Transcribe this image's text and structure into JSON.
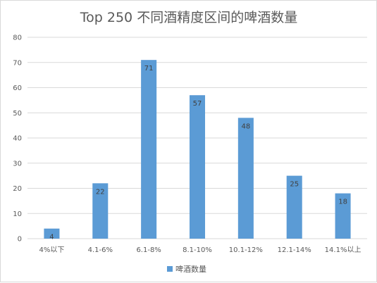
{
  "chart_data": {
    "type": "bar",
    "title": "Top 250 不同酒精度区间的啤酒数量",
    "categories": [
      "4%以下",
      "4.1-6%",
      "6.1-8%",
      "8.1-10%",
      "10.1-12%",
      "12.1-14%",
      "14.1%以上"
    ],
    "series": [
      {
        "name": "啤酒数量",
        "values": [
          4,
          22,
          71,
          57,
          48,
          25,
          18
        ]
      }
    ],
    "yticks": [
      0,
      10,
      20,
      30,
      40,
      50,
      60,
      70,
      80
    ],
    "ylim": [
      0,
      80
    ],
    "grid": true,
    "legend_position": "bottom",
    "data_labels": true,
    "colors": {
      "bar": "#5b9bd5",
      "grid": "#d9d9d9",
      "text": "#595959"
    }
  }
}
